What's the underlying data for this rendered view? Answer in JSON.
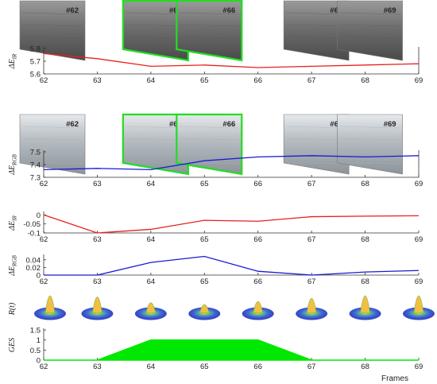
{
  "chart_data": [
    {
      "type": "line",
      "ylabel": "ΔE",
      "ylabel_sub": "IR",
      "x": [
        62,
        63,
        64,
        65,
        66,
        67,
        68,
        69
      ],
      "ylim": [
        5.6,
        5.8
      ],
      "yticks": [
        "5.6",
        "5.7",
        "5.8"
      ],
      "series": [
        {
          "values": [
            5.76,
            5.72,
            5.66,
            5.67,
            5.65,
            5.66,
            5.67,
            5.68
          ],
          "color": "#e8201c"
        }
      ],
      "frames": [
        {
          "label": "#62",
          "at": 62,
          "highlight": false
        },
        {
          "label": "#64",
          "at": 64,
          "highlight": true
        },
        {
          "label": "#66",
          "at": 65,
          "highlight": true
        },
        {
          "label": "#67",
          "at": 67,
          "highlight": false
        },
        {
          "label": "#69",
          "at": 68,
          "highlight": false
        }
      ],
      "frame_style": "ir"
    },
    {
      "type": "line",
      "ylabel": "ΔE",
      "ylabel_sub": "RGB",
      "x": [
        62,
        63,
        64,
        65,
        66,
        67,
        68,
        69
      ],
      "ylim": [
        7.3,
        7.5
      ],
      "yticks": [
        "7.3",
        "7.4",
        "7.5"
      ],
      "series": [
        {
          "values": [
            7.36,
            7.37,
            7.36,
            7.43,
            7.46,
            7.47,
            7.46,
            7.47
          ],
          "color": "#1a1ad6"
        }
      ],
      "frames": [
        {
          "label": "#62",
          "at": 62,
          "highlight": false
        },
        {
          "label": "#64",
          "at": 64,
          "highlight": true
        },
        {
          "label": "#66",
          "at": 65,
          "highlight": true
        },
        {
          "label": "#67",
          "at": 67,
          "highlight": false
        },
        {
          "label": "#69",
          "at": 68,
          "highlight": false
        }
      ],
      "frame_style": "rgb"
    },
    {
      "type": "line",
      "ylabel": "ΔE",
      "ylabel_sub": "IR",
      "x": [
        62,
        63,
        64,
        65,
        66,
        67,
        68,
        69
      ],
      "ylim": [
        -0.1,
        0.01
      ],
      "yticks": [
        "0",
        "-0.05",
        "-0.1"
      ],
      "series": [
        {
          "values": [
            0,
            -0.1,
            -0.08,
            -0.03,
            -0.035,
            -0.01,
            -0.007,
            -0.005
          ],
          "color": "#e8201c"
        }
      ]
    },
    {
      "type": "line",
      "ylabel": "ΔE",
      "ylabel_sub": "RGB",
      "x": [
        62,
        63,
        64,
        65,
        66,
        67,
        68,
        69
      ],
      "ylim": [
        0,
        0.05
      ],
      "yticks": [
        "0",
        "0.02",
        "0.04"
      ],
      "series": [
        {
          "values": [
            0,
            0.0,
            0.033,
            0.049,
            0.01,
            0.0,
            0.008,
            0.012
          ],
          "color": "#1a1ad6"
        }
      ]
    },
    {
      "type": "surface-thumbnails",
      "ylabel": "R(t)",
      "x": [
        62,
        63,
        64,
        65,
        66,
        67,
        68,
        69
      ],
      "peaks": [
        1.0,
        0.9,
        0.45,
        0.3,
        0.55,
        0.8,
        1.0,
        1.0
      ]
    },
    {
      "type": "area",
      "ylabel": "GES",
      "xlabel": "Frames",
      "x": [
        62,
        63,
        64,
        65,
        66,
        67,
        68,
        69
      ],
      "ylim": [
        0,
        1.5
      ],
      "yticks": [
        "0",
        "0.5",
        "1",
        "1.5"
      ],
      "series": [
        {
          "values": [
            0,
            0,
            1,
            1,
            1,
            0,
            0,
            0
          ],
          "color": "#00e800"
        }
      ]
    }
  ],
  "x_tick_labels": [
    "62",
    "63",
    "64",
    "65",
    "66",
    "67",
    "68",
    "69"
  ]
}
